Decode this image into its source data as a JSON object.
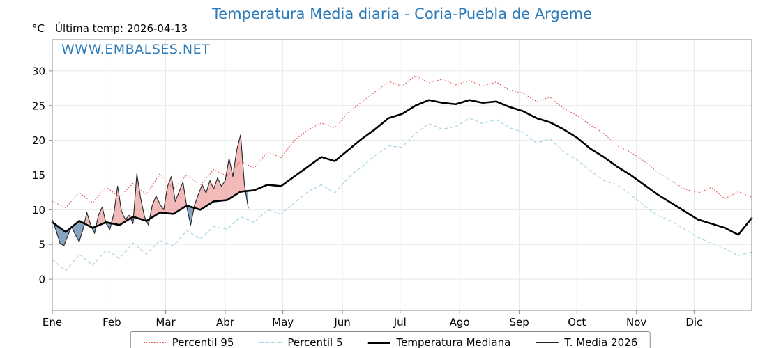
{
  "header": {
    "title": "Temperatura Media diaria - Coria-Puebla de Argeme",
    "y_unit": "°C",
    "last_temp_label": "Última temp: 2026-04-13",
    "watermark": "WWW.EMBALSES.NET"
  },
  "colors": {
    "title": "#2b7bba",
    "watermark": "#2b7bba",
    "p95": "#e04f4f",
    "p5": "#a6d4e4",
    "median": "#000000",
    "t2026": "#222222",
    "fill_above": "rgba(230,120,115,0.5)",
    "fill_below": "rgba(85,125,170,0.7)",
    "grid": "#e8e8e8",
    "axis": "#8a8a8a"
  },
  "legend": {
    "items": [
      "Percentil 95",
      "Percentil 5",
      "Temperatura Mediana",
      "T. Media 2026"
    ]
  },
  "chart_data": {
    "type": "line",
    "title": "Temperatura Media diaria - Coria-Puebla de Argeme",
    "xlabel": "",
    "ylabel": "°C",
    "x_tick_labels": [
      "Ene",
      "Feb",
      "Mar",
      "Abr",
      "May",
      "Jun",
      "Jul",
      "Ago",
      "Sep",
      "Oct",
      "Nov",
      "Dic"
    ],
    "month_start_days": [
      0,
      31,
      59,
      90,
      120,
      151,
      181,
      212,
      243,
      273,
      304,
      334
    ],
    "y_ticks": [
      0,
      5,
      10,
      15,
      20,
      25,
      30
    ],
    "ylim": [
      -4.5,
      34.5
    ],
    "x_range_days": [
      0,
      364
    ],
    "sample_step_days": 7,
    "grid": true,
    "legend_position": "bottom",
    "series": [
      {
        "role": "p95",
        "name": "Percentil 95",
        "values": [
          11.2,
          10.3,
          12.5,
          11.0,
          13.3,
          11.8,
          13.8,
          12.2,
          15.2,
          13.0,
          15.0,
          13.5,
          15.8,
          14.8,
          17.0,
          16.0,
          18.3,
          17.5,
          20.0,
          21.5,
          22.5,
          21.8,
          24.0,
          25.5,
          27.0,
          28.5,
          27.8,
          29.3,
          28.3,
          28.8,
          28.0,
          28.6,
          27.8,
          28.4,
          27.2,
          26.8,
          25.6,
          26.2,
          24.6,
          23.6,
          22.2,
          21.0,
          19.2,
          18.3,
          17.0,
          15.4,
          14.2,
          13.0,
          12.4,
          13.2,
          11.6,
          12.6,
          11.8
        ]
      },
      {
        "role": "p5",
        "name": "Percentil 5",
        "values": [
          2.8,
          1.2,
          3.6,
          2.0,
          4.2,
          3.0,
          5.2,
          3.6,
          5.6,
          4.8,
          7.0,
          5.8,
          7.6,
          7.2,
          9.0,
          8.2,
          10.0,
          9.4,
          11.0,
          12.6,
          13.6,
          12.4,
          14.6,
          16.2,
          17.8,
          19.2,
          19.0,
          21.0,
          22.4,
          21.6,
          22.0,
          23.2,
          22.4,
          23.0,
          21.8,
          21.2,
          19.6,
          20.2,
          18.4,
          17.2,
          15.6,
          14.2,
          13.6,
          12.2,
          10.6,
          9.2,
          8.4,
          7.2,
          6.0,
          5.2,
          4.4,
          3.4,
          3.9
        ]
      },
      {
        "role": "median",
        "name": "Temperatura Mediana",
        "values": [
          8.2,
          6.8,
          8.4,
          7.4,
          8.2,
          7.8,
          9.0,
          8.4,
          9.6,
          9.4,
          10.6,
          10.0,
          11.2,
          11.4,
          12.6,
          12.8,
          13.6,
          13.4,
          14.8,
          16.2,
          17.6,
          17.0,
          18.6,
          20.2,
          21.6,
          23.2,
          23.8,
          25.0,
          25.8,
          25.4,
          25.2,
          25.8,
          25.4,
          25.6,
          24.8,
          24.2,
          23.2,
          22.6,
          21.6,
          20.4,
          18.8,
          17.6,
          16.2,
          15.0,
          13.6,
          12.2,
          11.0,
          9.8,
          8.6,
          8.0,
          7.4,
          6.4,
          8.8
        ]
      }
    ],
    "t_media_2026": {
      "role": "t2026",
      "name": "T. Media 2026",
      "days": [
        0,
        2,
        4,
        6,
        8,
        10,
        12,
        14,
        16,
        18,
        20,
        22,
        24,
        26,
        28,
        30,
        32,
        34,
        36,
        38,
        40,
        42,
        44,
        46,
        48,
        50,
        52,
        54,
        56,
        58,
        60,
        62,
        64,
        66,
        68,
        70,
        72,
        74,
        76,
        78,
        80,
        82,
        84,
        86,
        88,
        90,
        92,
        94,
        96,
        98,
        100,
        102
      ],
      "values": [
        8.6,
        7.0,
        5.2,
        4.8,
        6.2,
        7.6,
        6.4,
        5.4,
        7.2,
        9.6,
        7.8,
        6.6,
        9.2,
        10.4,
        8.0,
        7.2,
        9.4,
        13.4,
        9.8,
        8.6,
        9.2,
        8.0,
        15.2,
        11.6,
        9.0,
        7.8,
        10.6,
        12.0,
        10.8,
        10.0,
        13.4,
        14.8,
        11.2,
        12.6,
        14.0,
        10.4,
        7.8,
        10.6,
        12.2,
        13.6,
        12.4,
        14.2,
        13.0,
        14.6,
        13.4,
        14.2,
        17.4,
        14.8,
        18.6,
        20.8,
        13.6,
        10.2
      ]
    }
  }
}
